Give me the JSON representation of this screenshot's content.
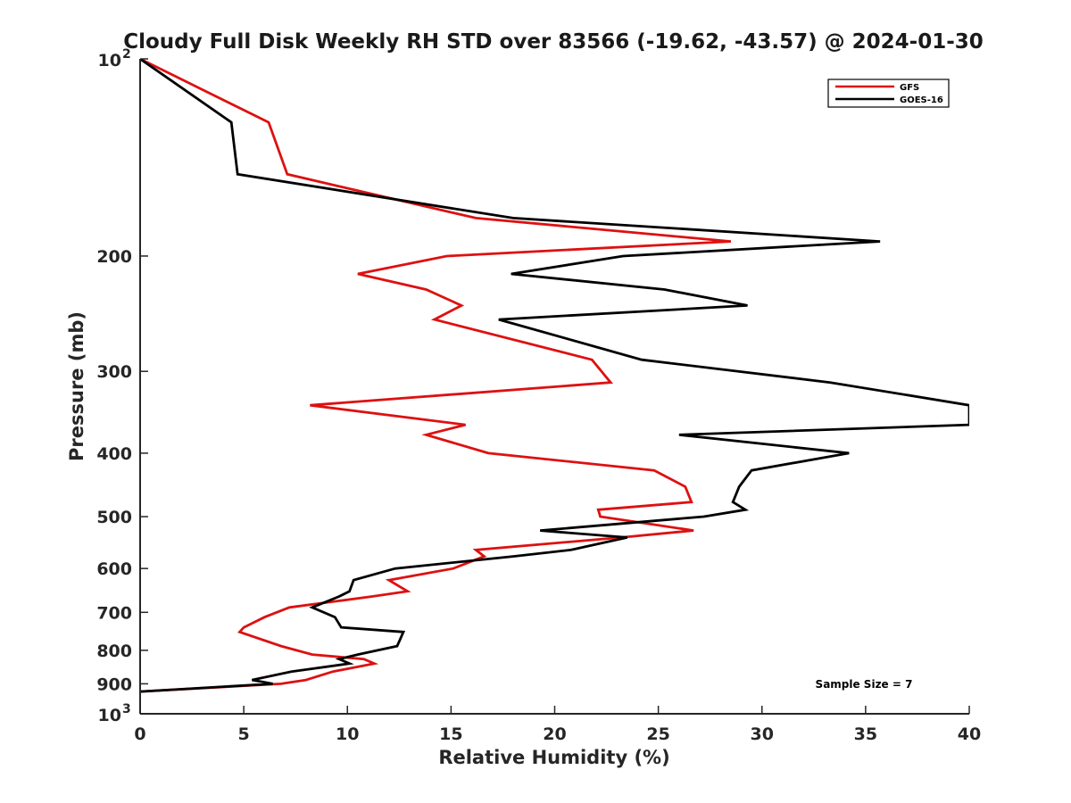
{
  "chart_data": {
    "type": "line",
    "title": "Cloudy Full Disk Weekly RH STD over 83566 (-19.62, -43.57) @ 2024-01-30",
    "xlabel": "Relative Humidity (%)",
    "ylabel": "Pressure (mb)",
    "xlim": [
      0,
      40
    ],
    "ylim": [
      100,
      1000
    ],
    "y_scale": "log",
    "y_reversed": true,
    "x_ticks": [
      0,
      5,
      10,
      15,
      20,
      25,
      30,
      35,
      40
    ],
    "y_ticks": [
      {
        "value": 100,
        "base": "10",
        "exp": "2"
      },
      {
        "value": 200,
        "label": "200"
      },
      {
        "value": 300,
        "label": "300"
      },
      {
        "value": 400,
        "label": "400"
      },
      {
        "value": 500,
        "label": "500"
      },
      {
        "value": 600,
        "label": "600"
      },
      {
        "value": 700,
        "label": "700"
      },
      {
        "value": 800,
        "label": "800"
      },
      {
        "value": 900,
        "label": "900"
      },
      {
        "value": 1000,
        "base": "10",
        "exp": "3"
      }
    ],
    "grid": false,
    "legend_position": "top-right",
    "series": [
      {
        "name": "GFS",
        "color": "#dd1111",
        "points": [
          [
            0,
            100
          ],
          [
            6.2,
            125
          ],
          [
            7.1,
            150
          ],
          [
            16.2,
            175
          ],
          [
            28.5,
            190
          ],
          [
            14.8,
            200
          ],
          [
            10.5,
            213
          ],
          [
            13.8,
            225
          ],
          [
            15.5,
            238
          ],
          [
            14.2,
            250
          ],
          [
            21.8,
            288
          ],
          [
            22.7,
            312
          ],
          [
            8.2,
            338
          ],
          [
            15.7,
            362
          ],
          [
            13.8,
            375
          ],
          [
            16.8,
            400
          ],
          [
            24.8,
            425
          ],
          [
            26.3,
            450
          ],
          [
            26.6,
            475
          ],
          [
            22.1,
            488
          ],
          [
            22.2,
            500
          ],
          [
            26.7,
            525
          ],
          [
            23.2,
            538
          ],
          [
            16.2,
            562
          ],
          [
            16.6,
            575
          ],
          [
            15.1,
            600
          ],
          [
            12.0,
            625
          ],
          [
            12.9,
            650
          ],
          [
            11.2,
            662
          ],
          [
            7.2,
            688
          ],
          [
            6.0,
            712
          ],
          [
            5.0,
            738
          ],
          [
            4.8,
            750
          ],
          [
            6.8,
            788
          ],
          [
            8.3,
            812
          ],
          [
            10.8,
            825
          ],
          [
            11.3,
            838
          ],
          [
            9.3,
            862
          ],
          [
            8.0,
            888
          ],
          [
            6.8,
            900
          ],
          [
            0,
            925
          ]
        ]
      },
      {
        "name": "GOES-16",
        "color": "#000000",
        "points": [
          [
            0,
            100
          ],
          [
            4.4,
            125
          ],
          [
            4.7,
            150
          ],
          [
            18.0,
            175
          ],
          [
            35.7,
            190
          ],
          [
            23.3,
            200
          ],
          [
            17.9,
            213
          ],
          [
            25.3,
            225
          ],
          [
            29.3,
            238
          ],
          [
            17.3,
            250
          ],
          [
            24.2,
            288
          ],
          [
            33.3,
            312
          ],
          [
            40.0,
            338
          ],
          [
            40.0,
            362
          ],
          [
            26.0,
            375
          ],
          [
            34.2,
            400
          ],
          [
            29.5,
            425
          ],
          [
            28.9,
            450
          ],
          [
            28.6,
            475
          ],
          [
            29.2,
            488
          ],
          [
            27.2,
            500
          ],
          [
            19.3,
            525
          ],
          [
            23.5,
            538
          ],
          [
            20.8,
            562
          ],
          [
            18.0,
            575
          ],
          [
            12.3,
            600
          ],
          [
            10.3,
            625
          ],
          [
            10.1,
            650
          ],
          [
            9.6,
            662
          ],
          [
            8.3,
            688
          ],
          [
            9.4,
            712
          ],
          [
            9.7,
            738
          ],
          [
            12.7,
            750
          ],
          [
            12.4,
            788
          ],
          [
            10.5,
            812
          ],
          [
            9.6,
            825
          ],
          [
            10.1,
            838
          ],
          [
            7.3,
            862
          ],
          [
            5.4,
            888
          ],
          [
            6.4,
            900
          ],
          [
            0,
            925
          ]
        ]
      }
    ],
    "annotations": [
      {
        "text": "Sample Size = 7"
      }
    ]
  }
}
